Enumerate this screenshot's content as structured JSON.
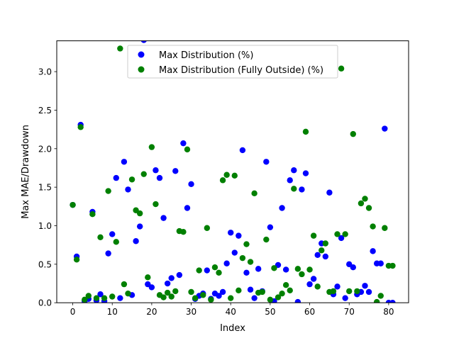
{
  "chart_data": {
    "type": "scatter",
    "title": "",
    "xlabel": "Index",
    "ylabel": "Max MAE/Drawdown",
    "xlim": [
      -4.05,
      85.05
    ],
    "ylim": [
      0,
      3.4
    ],
    "xticks": [
      0,
      10,
      20,
      30,
      40,
      50,
      60,
      70,
      80
    ],
    "yticks": [
      0.0,
      0.5,
      1.0,
      1.5,
      2.0,
      2.5,
      3.0
    ],
    "ytick_labels": [
      "0.0",
      "0.5",
      "1.0",
      "1.5",
      "2.0",
      "2.5",
      "3.0"
    ],
    "grid": false,
    "legend_position": "top-center",
    "series": [
      {
        "name": "Max Distribution (%)",
        "color": "#0000ff",
        "x": [
          0,
          1,
          2,
          3,
          4,
          5,
          6,
          7,
          8,
          9,
          10,
          11,
          12,
          13,
          14,
          15,
          16,
          17,
          18,
          19,
          20,
          21,
          22,
          23,
          24,
          25,
          26,
          27,
          28,
          29,
          30,
          31,
          32,
          33,
          34,
          35,
          36,
          37,
          38,
          39,
          40,
          41,
          42,
          43,
          44,
          45,
          46,
          47,
          48,
          49,
          50,
          51,
          52,
          53,
          54,
          55,
          56,
          57,
          58,
          59,
          60,
          61,
          62,
          63,
          64,
          65,
          66,
          67,
          68,
          69,
          70,
          71,
          72,
          73,
          74,
          75,
          76,
          77,
          78,
          79,
          80,
          81
        ],
        "y": [
          1.27,
          0.6,
          2.31,
          0.02,
          0.05,
          1.18,
          0.03,
          0.11,
          0.02,
          0.64,
          0.89,
          1.62,
          0.06,
          1.83,
          1.47,
          0.1,
          0.8,
          0.99,
          3.41,
          0.24,
          0.2,
          1.72,
          1.62,
          1.1,
          0.25,
          0.32,
          1.71,
          0.36,
          2.07,
          1.23,
          1.54,
          0.05,
          0.09,
          0.12,
          0.42,
          0.05,
          0.12,
          0.09,
          0.14,
          0.51,
          0.91,
          0.65,
          0.87,
          1.98,
          0.39,
          0.17,
          0.06,
          0.44,
          0.15,
          1.83,
          0.98,
          0.02,
          0.49,
          1.23,
          0.43,
          1.59,
          1.72,
          0.01,
          1.47,
          1.68,
          0.24,
          0.31,
          0.62,
          0.77,
          0.6,
          1.43,
          0.11,
          0.21,
          0.84,
          0.06,
          0.5,
          0.46,
          0.11,
          0.14,
          0.22,
          0.14,
          0.67,
          0.51,
          0.51,
          2.26,
          0.0,
          0.0
        ]
      },
      {
        "name": "Max Distribution (Fully Outside) (%)",
        "color": "#008000",
        "x": [
          0,
          1,
          2,
          3,
          4,
          5,
          6,
          7,
          8,
          9,
          10,
          11,
          12,
          13,
          14,
          15,
          16,
          17,
          18,
          19,
          20,
          21,
          22,
          23,
          24,
          25,
          26,
          27,
          28,
          29,
          30,
          31,
          32,
          33,
          34,
          35,
          36,
          37,
          38,
          39,
          40,
          41,
          42,
          43,
          44,
          45,
          46,
          47,
          48,
          49,
          50,
          51,
          52,
          53,
          54,
          55,
          56,
          57,
          58,
          59,
          60,
          61,
          62,
          63,
          64,
          65,
          66,
          67,
          68,
          69,
          70,
          71,
          72,
          73,
          74,
          75,
          76,
          77,
          78,
          79,
          80,
          81
        ],
        "y": [
          1.27,
          0.56,
          2.28,
          0.04,
          0.09,
          1.15,
          0.06,
          0.85,
          0.06,
          1.45,
          0.08,
          0.79,
          3.3,
          0.24,
          0.12,
          1.6,
          1.2,
          1.16,
          1.67,
          0.33,
          2.02,
          1.28,
          0.1,
          0.07,
          0.13,
          0.08,
          0.15,
          0.93,
          0.92,
          1.99,
          0.14,
          0.06,
          0.42,
          0.1,
          0.97,
          0.04,
          0.46,
          0.39,
          1.59,
          1.66,
          0.06,
          1.65,
          0.16,
          0.58,
          0.76,
          0.53,
          1.42,
          0.13,
          0.14,
          0.82,
          0.04,
          0.45,
          0.07,
          0.12,
          0.23,
          0.16,
          1.48,
          0.44,
          0.37,
          2.22,
          0.43,
          0.87,
          0.21,
          0.68,
          0.77,
          0.14,
          0.15,
          0.89,
          3.04,
          0.89,
          0.15,
          2.19,
          0.15,
          1.29,
          1.35,
          1.23,
          0.99,
          0.01,
          0.09,
          0.97,
          0.48,
          0.48
        ]
      }
    ]
  }
}
